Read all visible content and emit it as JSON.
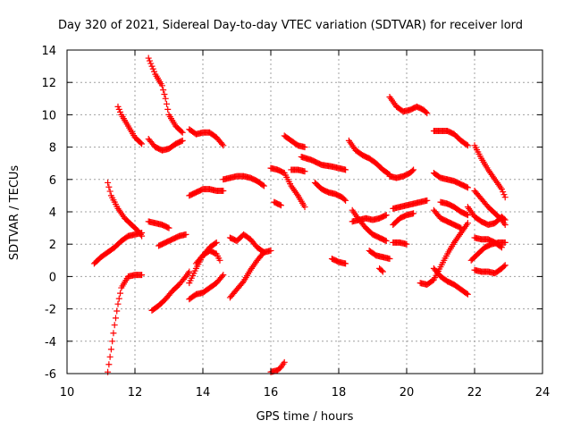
{
  "chart_data": {
    "type": "scatter",
    "title": "Day 320 of 2021, Sidereal Day-to-day VTEC variation (SDTVAR) for receiver lord",
    "xlabel": "GPS time / hours",
    "ylabel": "SDTVAR / TECUs",
    "xlim": [
      10,
      24
    ],
    "ylim": [
      -6,
      14
    ],
    "xticks": [
      "10",
      "12",
      "14",
      "16",
      "18",
      "20",
      "22",
      "24"
    ],
    "yticks": [
      "-6",
      "-4",
      "-2",
      "0",
      "2",
      "4",
      "6",
      "8",
      "10",
      "12",
      "14"
    ],
    "grid": true,
    "marker": "+",
    "series_color": "#ff0000",
    "tracks": [
      [
        [
          11.2,
          -5.9
        ],
        [
          11.3,
          -4.5
        ],
        [
          11.4,
          -3.0
        ],
        [
          11.5,
          -1.7
        ],
        [
          11.6,
          -0.7
        ],
        [
          11.8,
          0.0
        ],
        [
          12.0,
          0.1
        ],
        [
          12.2,
          0.1
        ]
      ],
      [
        [
          10.8,
          0.8
        ],
        [
          11.0,
          1.2
        ],
        [
          11.2,
          1.5
        ],
        [
          11.4,
          1.8
        ],
        [
          11.6,
          2.2
        ],
        [
          11.8,
          2.5
        ],
        [
          12.0,
          2.6
        ],
        [
          12.2,
          2.7
        ]
      ],
      [
        [
          11.2,
          5.8
        ],
        [
          11.3,
          5.0
        ],
        [
          11.5,
          4.2
        ],
        [
          11.7,
          3.6
        ],
        [
          11.9,
          3.2
        ],
        [
          12.1,
          2.8
        ],
        [
          12.2,
          2.5
        ]
      ],
      [
        [
          11.5,
          10.5
        ],
        [
          11.6,
          10.0
        ],
        [
          11.8,
          9.3
        ],
        [
          12.0,
          8.6
        ],
        [
          12.2,
          8.2
        ]
      ],
      [
        [
          12.4,
          13.5
        ],
        [
          12.6,
          12.5
        ],
        [
          12.8,
          11.8
        ],
        [
          12.9,
          11.0
        ],
        [
          13.0,
          10.0
        ],
        [
          13.2,
          9.3
        ],
        [
          13.4,
          8.9
        ]
      ],
      [
        [
          12.4,
          8.5
        ],
        [
          12.6,
          8.0
        ],
        [
          12.8,
          7.8
        ],
        [
          13.0,
          7.9
        ],
        [
          13.2,
          8.2
        ],
        [
          13.4,
          8.4
        ]
      ],
      [
        [
          12.4,
          3.4
        ],
        [
          12.6,
          3.3
        ],
        [
          12.8,
          3.2
        ],
        [
          13.0,
          3.0
        ]
      ],
      [
        [
          12.7,
          1.9
        ],
        [
          12.9,
          2.1
        ],
        [
          13.1,
          2.3
        ],
        [
          13.3,
          2.5
        ],
        [
          13.5,
          2.6
        ]
      ],
      [
        [
          12.5,
          -2.1
        ],
        [
          12.7,
          -1.8
        ],
        [
          12.9,
          -1.4
        ],
        [
          13.1,
          -0.9
        ],
        [
          13.3,
          -0.5
        ],
        [
          13.5,
          0.0
        ],
        [
          13.6,
          0.3
        ]
      ],
      [
        [
          13.6,
          -0.4
        ],
        [
          13.8,
          0.5
        ],
        [
          14.0,
          1.3
        ],
        [
          14.2,
          1.8
        ],
        [
          14.4,
          2.1
        ]
      ],
      [
        [
          13.6,
          -1.4
        ],
        [
          13.8,
          -1.1
        ],
        [
          14.0,
          -1.0
        ],
        [
          14.2,
          -0.7
        ],
        [
          14.4,
          -0.4
        ],
        [
          14.6,
          0.1
        ]
      ],
      [
        [
          13.8,
          0.8
        ],
        [
          14.0,
          1.3
        ],
        [
          14.2,
          1.6
        ],
        [
          14.4,
          1.4
        ],
        [
          14.5,
          1.0
        ]
      ],
      [
        [
          13.6,
          5.0
        ],
        [
          13.8,
          5.2
        ],
        [
          14.0,
          5.4
        ],
        [
          14.2,
          5.4
        ],
        [
          14.4,
          5.3
        ],
        [
          14.6,
          5.3
        ]
      ],
      [
        [
          13.6,
          9.1
        ],
        [
          13.8,
          8.8
        ],
        [
          14.0,
          8.9
        ],
        [
          14.2,
          8.9
        ],
        [
          14.4,
          8.6
        ],
        [
          14.6,
          8.1
        ]
      ],
      [
        [
          14.6,
          6.0
        ],
        [
          14.8,
          6.1
        ],
        [
          15.0,
          6.2
        ],
        [
          15.2,
          6.2
        ],
        [
          15.4,
          6.1
        ],
        [
          15.6,
          5.9
        ],
        [
          15.8,
          5.6
        ]
      ],
      [
        [
          14.8,
          2.4
        ],
        [
          15.0,
          2.2
        ],
        [
          15.2,
          2.6
        ],
        [
          15.4,
          2.3
        ],
        [
          15.6,
          1.8
        ],
        [
          15.8,
          1.5
        ]
      ],
      [
        [
          14.8,
          -1.3
        ],
        [
          15.0,
          -0.8
        ],
        [
          15.2,
          -0.3
        ],
        [
          15.4,
          0.4
        ],
        [
          15.6,
          1.0
        ],
        [
          15.8,
          1.5
        ],
        [
          16.0,
          1.6
        ]
      ],
      [
        [
          16.0,
          6.7
        ],
        [
          16.2,
          6.6
        ],
        [
          16.4,
          6.4
        ],
        [
          16.6,
          5.6
        ],
        [
          16.8,
          5.0
        ],
        [
          17.0,
          4.3
        ]
      ],
      [
        [
          16.1,
          4.6
        ],
        [
          16.3,
          4.4
        ]
      ],
      [
        [
          16.0,
          -5.9
        ],
        [
          16.2,
          -5.8
        ],
        [
          16.3,
          -5.6
        ],
        [
          16.4,
          -5.3
        ]
      ],
      [
        [
          16.4,
          8.7
        ],
        [
          16.6,
          8.4
        ],
        [
          16.8,
          8.1
        ],
        [
          17.0,
          8.0
        ]
      ],
      [
        [
          16.6,
          6.6
        ],
        [
          16.8,
          6.6
        ],
        [
          17.0,
          6.5
        ]
      ],
      [
        [
          16.9,
          7.4
        ],
        [
          17.2,
          7.2
        ],
        [
          17.5,
          6.9
        ],
        [
          17.8,
          6.8
        ],
        [
          18.0,
          6.7
        ],
        [
          18.2,
          6.6
        ]
      ],
      [
        [
          17.3,
          5.8
        ],
        [
          17.5,
          5.4
        ],
        [
          17.7,
          5.2
        ],
        [
          17.9,
          5.1
        ],
        [
          18.1,
          4.9
        ],
        [
          18.2,
          4.7
        ]
      ],
      [
        [
          17.8,
          1.1
        ],
        [
          18.0,
          0.9
        ],
        [
          18.2,
          0.8
        ]
      ],
      [
        [
          18.3,
          8.4
        ],
        [
          18.5,
          7.8
        ],
        [
          18.7,
          7.5
        ],
        [
          18.9,
          7.3
        ],
        [
          19.1,
          7.0
        ],
        [
          19.3,
          6.6
        ],
        [
          19.5,
          6.3
        ]
      ],
      [
        [
          18.4,
          4.1
        ],
        [
          18.6,
          3.5
        ],
        [
          18.8,
          3.0
        ],
        [
          19.0,
          2.6
        ],
        [
          19.2,
          2.4
        ],
        [
          19.4,
          2.2
        ]
      ],
      [
        [
          18.4,
          3.4
        ],
        [
          18.6,
          3.5
        ],
        [
          18.8,
          3.6
        ],
        [
          19.0,
          3.5
        ],
        [
          19.2,
          3.6
        ],
        [
          19.4,
          3.8
        ]
      ],
      [
        [
          18.9,
          1.6
        ],
        [
          19.1,
          1.3
        ],
        [
          19.3,
          1.2
        ],
        [
          19.5,
          1.1
        ]
      ],
      [
        [
          19.2,
          0.5
        ],
        [
          19.3,
          0.3
        ]
      ],
      [
        [
          19.5,
          11.1
        ],
        [
          19.7,
          10.5
        ],
        [
          19.9,
          10.2
        ],
        [
          20.1,
          10.3
        ],
        [
          20.3,
          10.5
        ],
        [
          20.5,
          10.3
        ],
        [
          20.6,
          10.1
        ]
      ],
      [
        [
          19.5,
          6.2
        ],
        [
          19.7,
          6.1
        ],
        [
          19.9,
          6.2
        ],
        [
          20.1,
          6.4
        ],
        [
          20.2,
          6.6
        ]
      ],
      [
        [
          19.6,
          4.2
        ],
        [
          19.8,
          4.3
        ],
        [
          20.0,
          4.4
        ],
        [
          20.2,
          4.5
        ],
        [
          20.4,
          4.6
        ],
        [
          20.6,
          4.7
        ]
      ],
      [
        [
          19.6,
          3.2
        ],
        [
          19.8,
          3.6
        ],
        [
          20.0,
          3.8
        ],
        [
          20.2,
          3.9
        ]
      ],
      [
        [
          19.6,
          2.1
        ],
        [
          19.8,
          2.1
        ],
        [
          20.0,
          2.0
        ]
      ],
      [
        [
          20.4,
          -0.4
        ],
        [
          20.6,
          -0.5
        ],
        [
          20.8,
          -0.2
        ],
        [
          21.0,
          0.6
        ],
        [
          21.2,
          1.4
        ],
        [
          21.4,
          2.1
        ],
        [
          21.6,
          2.7
        ],
        [
          21.8,
          3.3
        ]
      ],
      [
        [
          20.8,
          0.5
        ],
        [
          21.0,
          0.0
        ],
        [
          21.2,
          -0.3
        ],
        [
          21.4,
          -0.5
        ],
        [
          21.6,
          -0.8
        ],
        [
          21.8,
          -1.1
        ]
      ],
      [
        [
          20.8,
          9.0
        ],
        [
          21.0,
          9.0
        ],
        [
          21.2,
          9.0
        ],
        [
          21.4,
          8.8
        ],
        [
          21.6,
          8.4
        ],
        [
          21.8,
          8.1
        ]
      ],
      [
        [
          20.8,
          6.4
        ],
        [
          21.0,
          6.1
        ],
        [
          21.2,
          6.0
        ],
        [
          21.4,
          5.9
        ],
        [
          21.6,
          5.7
        ],
        [
          21.8,
          5.5
        ]
      ],
      [
        [
          20.8,
          4.1
        ],
        [
          21.0,
          3.6
        ],
        [
          21.2,
          3.4
        ],
        [
          21.4,
          3.2
        ],
        [
          21.6,
          3.0
        ]
      ],
      [
        [
          21.0,
          4.6
        ],
        [
          21.2,
          4.5
        ],
        [
          21.4,
          4.3
        ],
        [
          21.6,
          4.0
        ],
        [
          21.8,
          3.8
        ]
      ],
      [
        [
          21.8,
          4.3
        ],
        [
          22.0,
          3.7
        ],
        [
          22.2,
          3.4
        ],
        [
          22.4,
          3.2
        ],
        [
          22.6,
          3.3
        ],
        [
          22.8,
          3.7
        ],
        [
          22.9,
          3.5
        ]
      ],
      [
        [
          21.9,
          1.0
        ],
        [
          22.1,
          1.4
        ],
        [
          22.3,
          1.8
        ],
        [
          22.5,
          2.0
        ],
        [
          22.7,
          2.1
        ],
        [
          22.9,
          2.1
        ]
      ],
      [
        [
          22.0,
          8.1
        ],
        [
          22.2,
          7.3
        ],
        [
          22.4,
          6.6
        ],
        [
          22.6,
          6.0
        ],
        [
          22.8,
          5.4
        ],
        [
          22.9,
          4.9
        ]
      ],
      [
        [
          22.0,
          5.3
        ],
        [
          22.2,
          4.8
        ],
        [
          22.4,
          4.3
        ],
        [
          22.6,
          3.9
        ],
        [
          22.8,
          3.5
        ],
        [
          22.9,
          3.2
        ]
      ],
      [
        [
          22.0,
          2.4
        ],
        [
          22.2,
          2.3
        ],
        [
          22.4,
          2.3
        ],
        [
          22.6,
          2.1
        ],
        [
          22.8,
          1.8
        ]
      ],
      [
        [
          22.0,
          0.4
        ],
        [
          22.2,
          0.3
        ],
        [
          22.4,
          0.3
        ],
        [
          22.6,
          0.2
        ],
        [
          22.8,
          0.5
        ],
        [
          22.9,
          0.7
        ]
      ]
    ]
  }
}
